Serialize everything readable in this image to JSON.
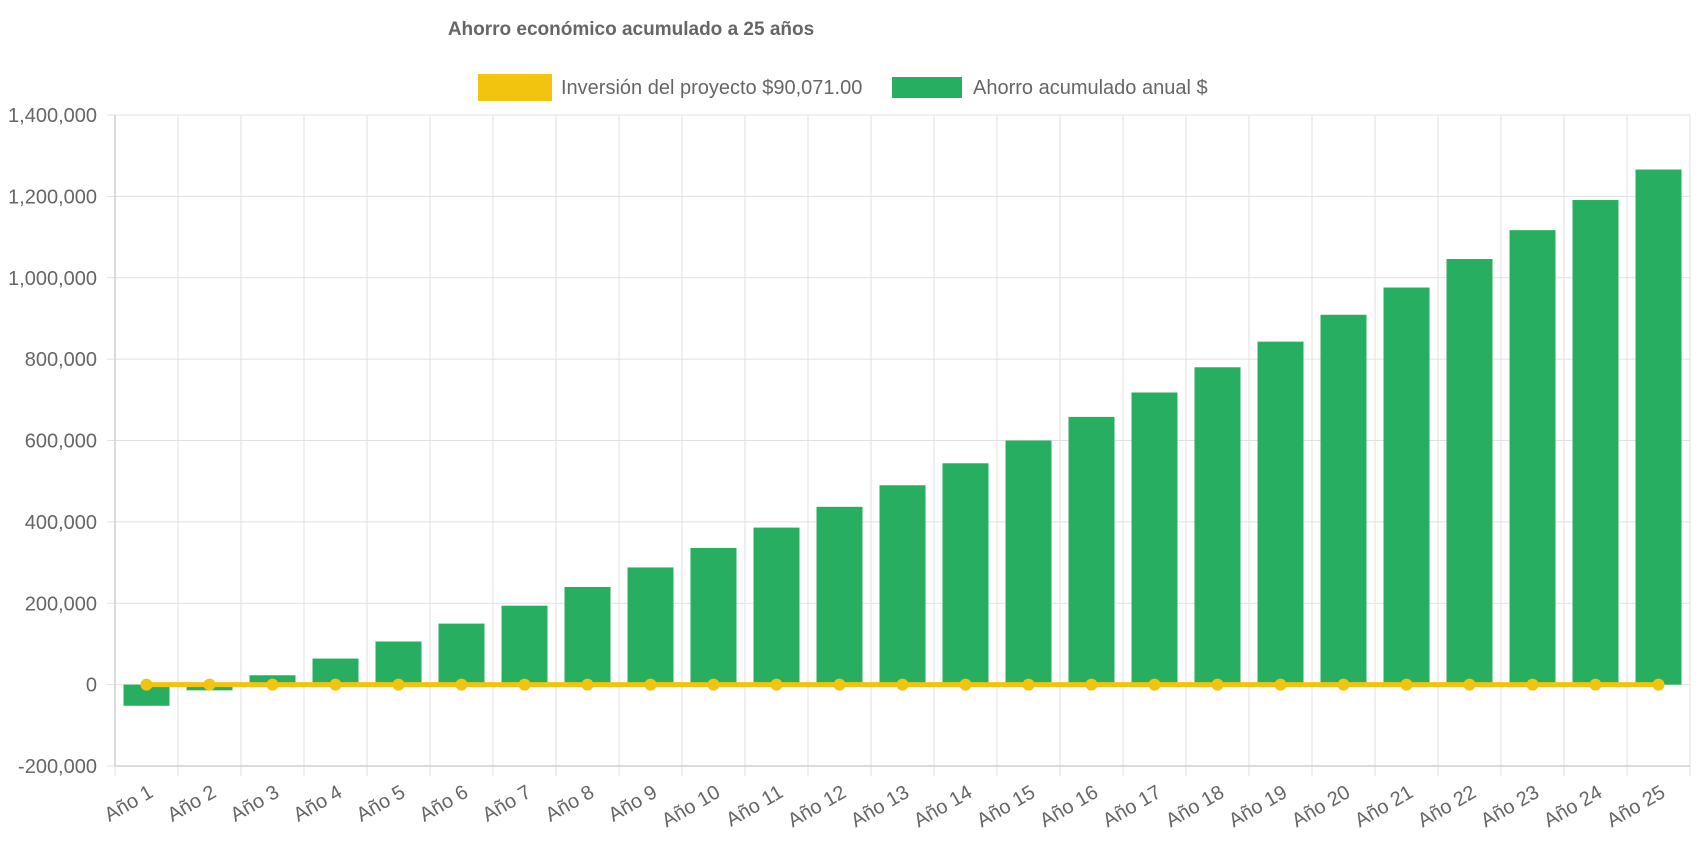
{
  "chart_data": {
    "type": "bar",
    "title": "Ahorro económico acumulado a 25 años",
    "legend": {
      "placement": "top-center",
      "items": [
        {
          "label": "Inversión del proyecto $90,071.00",
          "color": "#f2c30f",
          "kind": "line"
        },
        {
          "label": "Ahorro acumulado anual $",
          "color": "#27ae60",
          "kind": "bar"
        }
      ]
    },
    "categories": [
      "Año 1",
      "Año 2",
      "Año 3",
      "Año 4",
      "Año 5",
      "Año 6",
      "Año 7",
      "Año 8",
      "Año 9",
      "Año 10",
      "Año 11",
      "Año 12",
      "Año 13",
      "Año 14",
      "Año 15",
      "Año 16",
      "Año 17",
      "Año 18",
      "Año 19",
      "Año 20",
      "Año 21",
      "Año 22",
      "Año 23",
      "Año 24",
      "Año 25"
    ],
    "series": [
      {
        "name": "Ahorro acumulado anual $",
        "type": "bar",
        "color": "#27ae60",
        "values": [
          -52000,
          -14000,
          23000,
          64000,
          106000,
          150000,
          194000,
          240000,
          288000,
          336000,
          386000,
          437000,
          490000,
          544000,
          600000,
          658000,
          718000,
          780000,
          843000,
          909000,
          976000,
          1046000,
          1117000,
          1191000,
          1266000
        ]
      },
      {
        "name": "Inversión del proyecto $90,071.00",
        "type": "line",
        "color": "#f2c30f",
        "values": [
          0,
          0,
          0,
          0,
          0,
          0,
          0,
          0,
          0,
          0,
          0,
          0,
          0,
          0,
          0,
          0,
          0,
          0,
          0,
          0,
          0,
          0,
          0,
          0,
          0
        ]
      }
    ],
    "ylim": [
      -200000,
      1400000
    ],
    "y_ticks": [
      1400000,
      1200000,
      1000000,
      800000,
      600000,
      400000,
      200000,
      0,
      -200000
    ],
    "y_tick_labels": [
      "1,400,000",
      "1,200,000",
      "1,000,000",
      "800,000",
      "600,000",
      "400,000",
      "200,000",
      "0",
      "-200,000"
    ],
    "grid": true,
    "xlabel": "",
    "ylabel": ""
  }
}
